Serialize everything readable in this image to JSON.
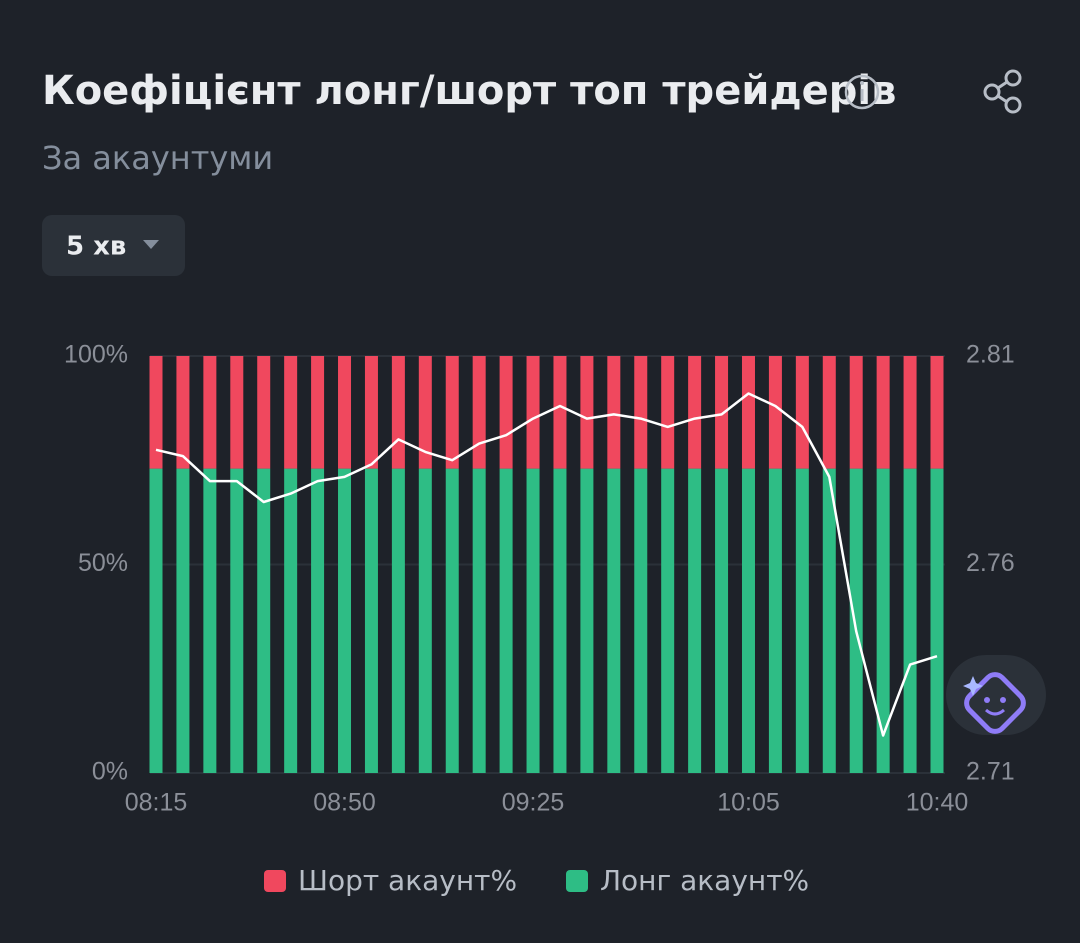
{
  "header": {
    "title": "Коефіцієнт лонг/шорт топ трейдерів",
    "subtitle": "За акаунтуми",
    "interval": "5 хв"
  },
  "chart_data": {
    "type": "bar",
    "stacked": true,
    "categories": [
      "08:15",
      null,
      null,
      null,
      null,
      null,
      null,
      "08:50",
      null,
      null,
      null,
      null,
      null,
      null,
      "09:25",
      null,
      null,
      null,
      null,
      null,
      null,
      null,
      "10:05",
      null,
      null,
      null,
      null,
      null,
      null,
      "10:40"
    ],
    "series": [
      {
        "name": "Шорт акаунт%",
        "color": "#f0485e",
        "values": [
          27,
          27,
          27,
          27,
          27,
          27,
          27,
          27,
          27,
          27,
          27,
          27,
          27,
          27,
          27,
          27,
          27,
          27,
          27,
          27,
          27,
          27,
          27,
          27,
          27,
          27,
          27,
          27,
          27,
          27
        ]
      },
      {
        "name": "Лонг акаунт%",
        "color": "#2ebd85",
        "values": [
          73,
          73,
          73,
          73,
          73,
          73,
          73,
          73,
          73,
          73,
          73,
          73,
          73,
          73,
          73,
          73,
          73,
          73,
          73,
          73,
          73,
          73,
          73,
          73,
          73,
          73,
          73,
          73,
          73,
          73
        ]
      }
    ],
    "lines": [
      {
        "color": "#ffffff",
        "axis": "y2",
        "values": [
          2.7875,
          2.786,
          2.78,
          2.78,
          2.775,
          2.777,
          2.78,
          2.781,
          2.784,
          2.79,
          2.787,
          2.785,
          2.789,
          2.791,
          2.795,
          2.798,
          2.795,
          2.796,
          2.795,
          2.793,
          2.795,
          2.796,
          2.801,
          2.798,
          2.793,
          2.781,
          2.744,
          2.719,
          2.736,
          2.738
        ]
      }
    ],
    "ylim": [
      0,
      100
    ],
    "yticks": [
      {
        "value": 0,
        "label": "0%"
      },
      {
        "value": 50,
        "label": "50%"
      },
      {
        "value": 100,
        "label": "100%"
      }
    ],
    "y2lim": [
      2.71,
      2.81
    ],
    "y2ticks": [
      2.71,
      2.76,
      2.81
    ],
    "grid": true
  }
}
